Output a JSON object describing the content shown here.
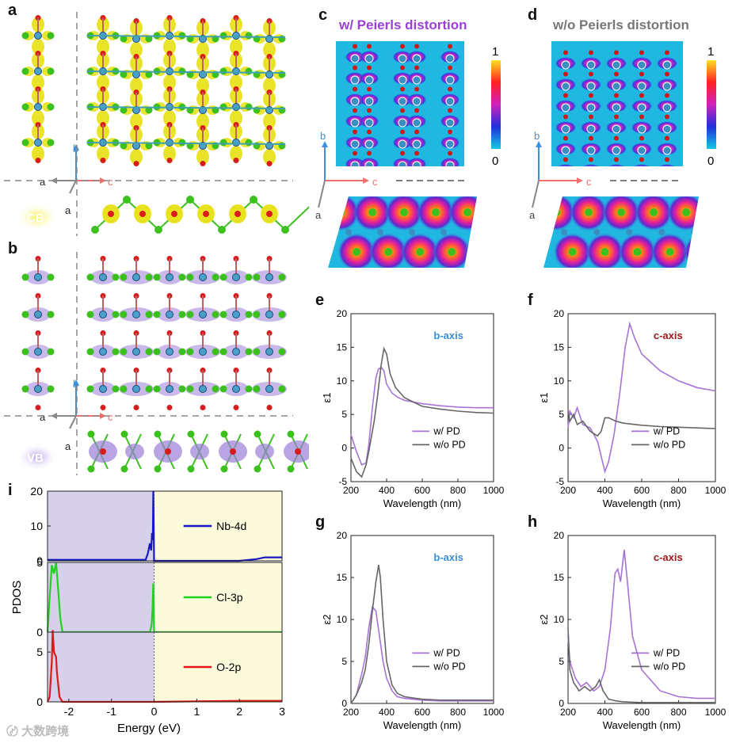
{
  "labels": {
    "a": "a",
    "b": "b",
    "c": "c",
    "d": "d",
    "e": "e",
    "f": "f",
    "g": "g",
    "h": "h",
    "i": "i"
  },
  "structure": {
    "axis_a": "a",
    "axis_b": "b",
    "axis_c": "c",
    "cb_badge": "CB",
    "vb_badge": "VB",
    "colors": {
      "nb": "#4aa0c8",
      "cl": "#3cc01e",
      "o": "#d81c1c",
      "cb_iso": "#e8e21e",
      "vb_iso": "#9b7fd8"
    }
  },
  "maps": {
    "c_title": "w/  Peierls distortion",
    "d_title": "w/o  Peierls distortion",
    "cbar_max": "1",
    "cbar_min": "0"
  },
  "chart_data": [
    {
      "panel": "e",
      "type": "line",
      "ylabel": "ε1",
      "xlabel": "Wavelength (nm)",
      "annotation": "b-axis",
      "xlim": [
        200,
        1000
      ],
      "ylim": [
        -5,
        20
      ],
      "xticks": [
        200,
        400,
        600,
        800,
        1000
      ],
      "yticks": [
        -5,
        0,
        5,
        10,
        15,
        20
      ],
      "series": [
        {
          "name": "w/   PD",
          "color": "#a673d6",
          "x": [
            200,
            230,
            260,
            285,
            300,
            320,
            340,
            355,
            370,
            385,
            400,
            430,
            460,
            500,
            600,
            700,
            800,
            900,
            1000
          ],
          "y": [
            2,
            -0.5,
            -2.5,
            -2.2,
            0.5,
            6,
            10.5,
            11.8,
            12,
            11.5,
            9.5,
            8.2,
            7.6,
            7.1,
            6.6,
            6.3,
            6.1,
            6.0,
            6.0
          ]
        },
        {
          "name": "w/o PD",
          "color": "#666666",
          "x": [
            200,
            230,
            260,
            285,
            300,
            330,
            350,
            370,
            385,
            400,
            420,
            450,
            500,
            600,
            700,
            800,
            900,
            1000
          ],
          "y": [
            -1.5,
            -3.5,
            -4.3,
            -2.5,
            -0.5,
            4,
            8,
            12.5,
            14.8,
            14,
            11,
            9,
            7.5,
            6.2,
            5.8,
            5.5,
            5.3,
            5.2
          ]
        }
      ],
      "legend": [
        "w/   PD",
        "w/o PD"
      ]
    },
    {
      "panel": "f",
      "type": "line",
      "ylabel": "ε1",
      "xlabel": "Wavelength (nm)",
      "annotation": "c-axis",
      "xlim": [
        200,
        1000
      ],
      "ylim": [
        -5,
        20
      ],
      "xticks": [
        200,
        400,
        600,
        800,
        1000
      ],
      "yticks": [
        -5,
        0,
        5,
        10,
        15,
        20
      ],
      "series": [
        {
          "name": "w/   PD",
          "color": "#a673d6",
          "x": [
            200,
            210,
            230,
            250,
            280,
            320,
            360,
            400,
            420,
            450,
            480,
            510,
            535,
            560,
            600,
            700,
            800,
            900,
            1000
          ],
          "y": [
            3,
            5.5,
            4.5,
            6,
            3.5,
            3,
            1,
            -3.5,
            -2,
            2,
            8,
            15,
            18.5,
            16.5,
            14,
            11.5,
            10,
            9,
            8.5
          ]
        },
        {
          "name": "w/o PD",
          "color": "#666666",
          "x": [
            200,
            210,
            230,
            250,
            280,
            320,
            360,
            380,
            400,
            420,
            460,
            500,
            600,
            700,
            800,
            900,
            1000
          ],
          "y": [
            5.5,
            4,
            5,
            3.5,
            4,
            2.5,
            1.8,
            2.5,
            4.5,
            4.5,
            4,
            3.7,
            3.4,
            3.2,
            3.1,
            3.0,
            2.9
          ]
        }
      ],
      "legend": [
        "w/   PD",
        "w/o PD"
      ]
    },
    {
      "panel": "g",
      "type": "line",
      "ylabel": "ε2",
      "xlabel": "Wavelength (nm)",
      "annotation": "b-axis",
      "xlim": [
        200,
        1000
      ],
      "ylim": [
        0,
        20
      ],
      "xticks": [
        200,
        400,
        600,
        800,
        1000
      ],
      "yticks": [
        0,
        5,
        10,
        15,
        20
      ],
      "series": [
        {
          "name": "w/   PD",
          "color": "#a673d6",
          "x": [
            200,
            230,
            260,
            280,
            300,
            320,
            340,
            360,
            380,
            400,
            430,
            460,
            500,
            600,
            700,
            800,
            900,
            1000
          ],
          "y": [
            0,
            1,
            3.5,
            5.5,
            9,
            11.5,
            11,
            8,
            5,
            3,
            1.5,
            0.8,
            0.6,
            0.4,
            0.3,
            0.3,
            0.3,
            0.3
          ]
        },
        {
          "name": "w/o PD",
          "color": "#666666",
          "x": [
            200,
            230,
            260,
            280,
            300,
            320,
            340,
            355,
            365,
            380,
            400,
            430,
            460,
            500,
            600,
            700,
            800,
            900,
            1000
          ],
          "y": [
            0,
            1,
            2.5,
            4,
            7,
            11,
            14.5,
            16.5,
            15,
            10,
            5,
            2.2,
            1.2,
            0.8,
            0.5,
            0.4,
            0.4,
            0.4,
            0.4
          ]
        }
      ],
      "legend": [
        "w/   PD",
        "w/o PD"
      ]
    },
    {
      "panel": "h",
      "type": "line",
      "ylabel": "ε2",
      "xlabel": "Wavelength (nm)",
      "annotation": "c-axis",
      "xlim": [
        200,
        1000
      ],
      "ylim": [
        0,
        20
      ],
      "xticks": [
        200,
        400,
        600,
        800,
        1000
      ],
      "yticks": [
        0,
        5,
        10,
        15,
        20
      ],
      "series": [
        {
          "name": "w/   PD",
          "color": "#a673d6",
          "x": [
            200,
            210,
            240,
            270,
            300,
            340,
            370,
            400,
            430,
            455,
            470,
            485,
            505,
            520,
            550,
            600,
            700,
            800,
            900,
            1000
          ],
          "y": [
            8,
            5,
            3,
            2,
            2.5,
            1.5,
            2,
            4,
            9,
            15.5,
            16,
            14.5,
            18.3,
            15,
            8,
            4,
            1.5,
            0.8,
            0.6,
            0.6
          ]
        },
        {
          "name": "w/o PD",
          "color": "#666666",
          "x": [
            200,
            210,
            230,
            260,
            290,
            320,
            350,
            370,
            390,
            420,
            460,
            500,
            600,
            800,
            1000
          ],
          "y": [
            9,
            4,
            2.5,
            1.5,
            2,
            1.5,
            2,
            2.8,
            1.5,
            0.5,
            0.3,
            0.2,
            0.1,
            0.1,
            0.1
          ]
        }
      ],
      "legend": [
        "w/   PD",
        "w/o PD"
      ]
    },
    {
      "panel": "i",
      "type": "line",
      "ylabel": "PDOS",
      "xlabel": "Energy (eV)",
      "xlim": [
        -2.5,
        3
      ],
      "xticks": [
        -2,
        -1,
        0,
        1,
        2,
        3
      ],
      "shade_vb": "#d6d0ea",
      "shade_cb": "#fbfbdc",
      "subplots": [
        {
          "name": "Nb-4d",
          "color": "#1818c0",
          "ylim": [
            0,
            20
          ],
          "yticks": [
            0,
            10,
            20
          ],
          "x": [
            -2.5,
            -0.2,
            -0.15,
            -0.1,
            -0.07,
            -0.05,
            -0.03,
            -0.02,
            0,
            0.02,
            2.0,
            2.4,
            2.6,
            3.0
          ],
          "y": [
            0.3,
            0.3,
            2,
            5,
            3,
            8,
            6,
            20,
            0,
            0,
            0,
            0.5,
            1,
            1
          ]
        },
        {
          "name": "Cl-3p",
          "color": "#22d022",
          "ylim": [
            0,
            5
          ],
          "yticks": [
            0,
            5
          ],
          "x": [
            -2.5,
            -2.45,
            -2.4,
            -2.35,
            -2.3,
            -2.25,
            -2.2,
            -2.15,
            -0.1,
            -0.06,
            -0.04,
            -0.02,
            0,
            3.0
          ],
          "y": [
            0,
            2.5,
            4.8,
            4.2,
            5,
            3,
            1,
            0,
            0,
            0.5,
            1.5,
            3.5,
            0,
            0
          ]
        },
        {
          "name": "O-2p",
          "color": "#e01818",
          "ylim": [
            0,
            7
          ],
          "yticks": [
            0,
            5
          ],
          "x": [
            -2.5,
            -2.45,
            -2.4,
            -2.38,
            -2.35,
            -2.3,
            -2.28,
            -2.22,
            -2.15,
            -0.1,
            0,
            2.0,
            3.0
          ],
          "y": [
            0,
            0.5,
            4,
            7.2,
            5,
            4.5,
            3,
            0.5,
            0,
            0,
            0,
            0.1,
            0.1
          ]
        }
      ]
    }
  ]
}
